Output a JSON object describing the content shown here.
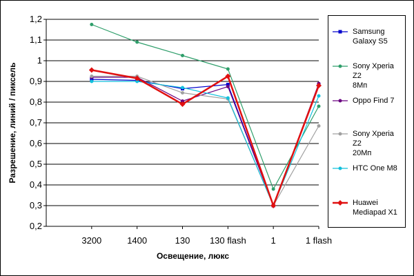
{
  "chart_data": {
    "type": "line",
    "title": "",
    "xlabel": "Освещение, люкс",
    "ylabel": "Разрешение, линий / пиксель",
    "categories": [
      "3200",
      "1400",
      "130",
      "130 flash",
      "1",
      "1 flash"
    ],
    "ylim": [
      0.2,
      1.2
    ],
    "yticks": [
      "0,2",
      "0,3",
      "0,4",
      "0,5",
      "0,6",
      "0,7",
      "0,8",
      "0,9",
      "1",
      "1,1",
      "1,2"
    ],
    "grid": "horizontal",
    "legend_position": "right",
    "series": [
      {
        "name": "Samsung Galaxy S5",
        "label": "Samsung\nGalaxy S5",
        "color": "#0000cc",
        "marker": "square",
        "values": [
          0.91,
          0.905,
          0.865,
          0.885,
          0.3,
          0.885
        ]
      },
      {
        "name": "Sony Xperia Z2 8Мп",
        "label": "Sony Xperia Z2\n8Мп",
        "color": "#2e9e6a",
        "marker": "circle",
        "values": [
          1.175,
          1.09,
          1.025,
          0.96,
          0.38,
          0.78
        ]
      },
      {
        "name": "Oppo Find 7",
        "label": "Oppo Find 7",
        "color": "#6a0080",
        "marker": "circle",
        "values": [
          0.92,
          0.92,
          0.805,
          0.875,
          0.3,
          0.89
        ]
      },
      {
        "name": "Sony Xperia Z2 20Мп",
        "label": "Sony Xperia Z2\n20Мп",
        "color": "#a0a0a0",
        "marker": "circle",
        "values": [
          0.925,
          0.925,
          0.845,
          0.815,
          0.3,
          0.685
        ]
      },
      {
        "name": "HTC One M8",
        "label": "HTC One M8",
        "color": "#11c0dc",
        "marker": "circle",
        "values": [
          0.9,
          0.9,
          0.87,
          0.82,
          0.3,
          0.83
        ]
      },
      {
        "name": "Huawei Mediapad X1",
        "label": "Huawei\nMediapad X1",
        "color": "#e01010",
        "marker": "diamond",
        "values": [
          0.955,
          0.915,
          0.79,
          0.925,
          0.3,
          0.88
        ]
      }
    ]
  }
}
